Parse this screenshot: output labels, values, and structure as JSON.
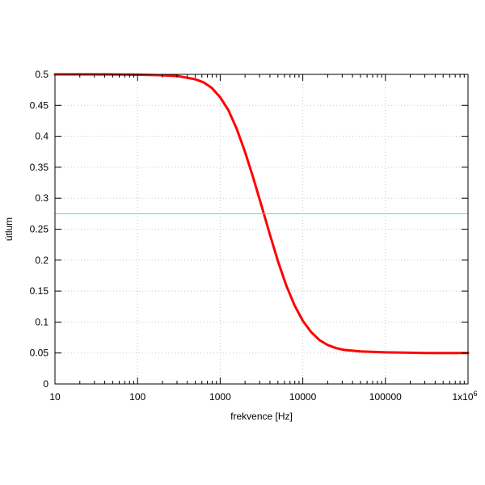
{
  "chart_data": {
    "type": "line",
    "title": "",
    "xlabel": "frekvence [Hz]",
    "ylabel": "útlum",
    "xscale": "log",
    "xlim": [
      10,
      1000000
    ],
    "ylim": [
      0,
      0.5
    ],
    "grid": true,
    "x_ticks": [
      {
        "value": 10,
        "label": "10"
      },
      {
        "value": 100,
        "label": "100"
      },
      {
        "value": 1000,
        "label": "1000"
      },
      {
        "value": 10000,
        "label": "10000"
      },
      {
        "value": 100000,
        "label": "100000"
      },
      {
        "value": 1000000,
        "label": "1x10",
        "sup": "6"
      }
    ],
    "y_ticks": [
      {
        "value": 0,
        "label": "0"
      },
      {
        "value": 0.05,
        "label": "0.05"
      },
      {
        "value": 0.1,
        "label": "0.1"
      },
      {
        "value": 0.15,
        "label": "0.15"
      },
      {
        "value": 0.2,
        "label": "0.2"
      },
      {
        "value": 0.25,
        "label": "0.25"
      },
      {
        "value": 0.3,
        "label": "0.3"
      },
      {
        "value": 0.35,
        "label": "0.35"
      },
      {
        "value": 0.4,
        "label": "0.4"
      },
      {
        "value": 0.45,
        "label": "0.45"
      },
      {
        "value": 0.5,
        "label": "0.5"
      }
    ],
    "series": [
      {
        "color": "#ff0000",
        "x": [
          10,
          31.6,
          100,
          200,
          316,
          501,
          631,
          794,
          1000,
          1259,
          1585,
          1995,
          2512,
          3162,
          3981,
          5012,
          6310,
          7943,
          10000,
          12589,
          15849,
          19953,
          25119,
          31623,
          50119,
          100000,
          316228,
          1000000
        ],
        "y": [
          0.5,
          0.5,
          0.4995,
          0.4985,
          0.497,
          0.492,
          0.487,
          0.478,
          0.463,
          0.442,
          0.412,
          0.375,
          0.333,
          0.288,
          0.242,
          0.198,
          0.159,
          0.127,
          0.102,
          0.084,
          0.071,
          0.063,
          0.058,
          0.055,
          0.0525,
          0.051,
          0.05,
          0.05
        ]
      },
      {
        "color": "#40e0d0",
        "x": [
          10,
          1000000
        ],
        "y": [
          0.275,
          0.275
        ]
      }
    ]
  }
}
